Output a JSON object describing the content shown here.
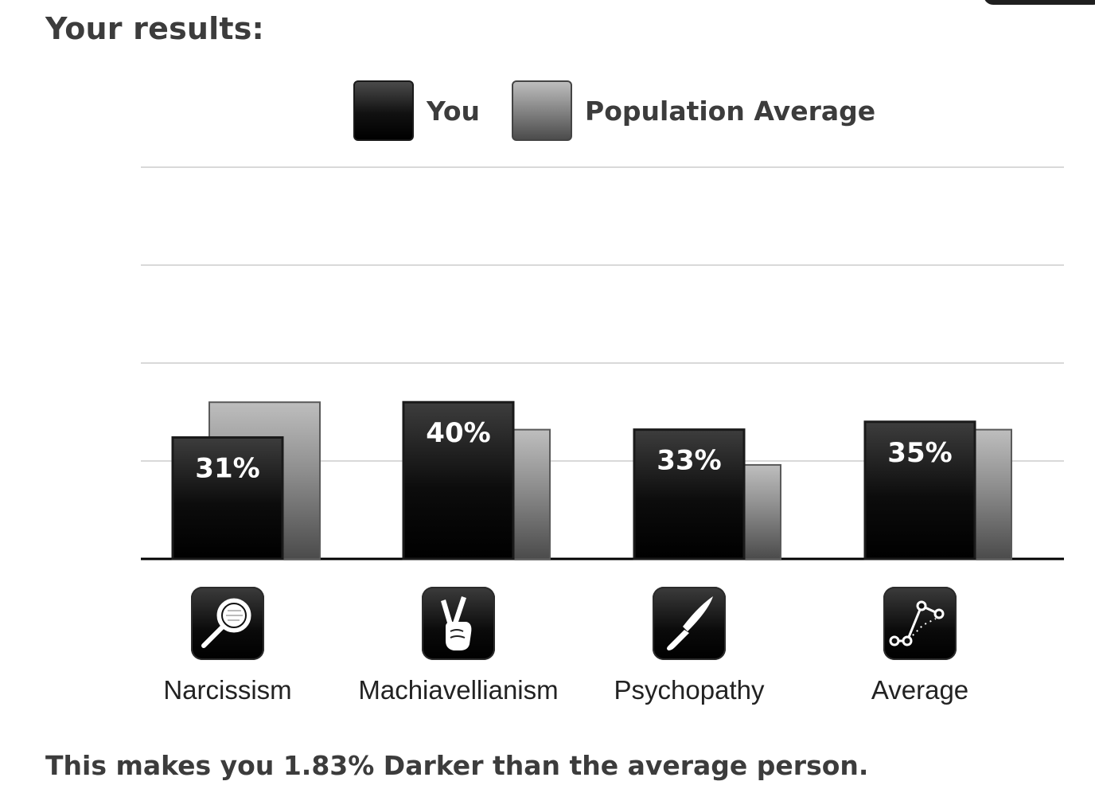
{
  "page": {
    "title": "Your results:",
    "summary": "This makes you 1.83% Darker than the average person."
  },
  "colors": {
    "you": "#000000",
    "population": "#8a8a8a",
    "grid": "#d9d9d9",
    "baseline": "#000000"
  },
  "chart_data": {
    "type": "bar",
    "categories": [
      "Narcissism",
      "Machiavellianism",
      "Psychopathy",
      "Average"
    ],
    "category_icons": [
      "magnifying-glass-icon",
      "crossed-fingers-icon",
      "knife-icon",
      "line-graph-icon"
    ],
    "series": [
      {
        "name": "You",
        "values": [
          31,
          40,
          33,
          35
        ],
        "data_labels": [
          "31%",
          "40%",
          "33%",
          "35%"
        ]
      },
      {
        "name": "Population Average",
        "values": [
          40,
          33,
          24,
          33
        ]
      }
    ],
    "ylim": [
      0,
      100
    ],
    "grid": true,
    "legend": "top-center",
    "title": "",
    "xlabel": "",
    "ylabel": ""
  }
}
